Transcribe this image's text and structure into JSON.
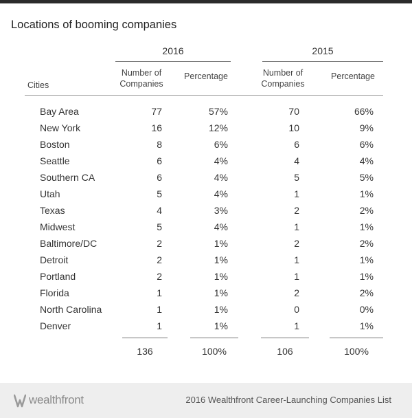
{
  "title": "Locations of booming companies",
  "years": [
    "2016",
    "2015"
  ],
  "col_headers": {
    "cities": "Cities",
    "number_line1": "Number of",
    "number_line2": "Companies",
    "percentage": "Percentage"
  },
  "rows": [
    {
      "city": "Bay Area",
      "n2016": "77",
      "p2016": "57%",
      "n2015": "70",
      "p2015": "66%"
    },
    {
      "city": "New York",
      "n2016": "16",
      "p2016": "12%",
      "n2015": "10",
      "p2015": "9%"
    },
    {
      "city": "Boston",
      "n2016": "8",
      "p2016": "6%",
      "n2015": "6",
      "p2015": "6%"
    },
    {
      "city": "Seattle",
      "n2016": "6",
      "p2016": "4%",
      "n2015": "4",
      "p2015": "4%"
    },
    {
      "city": "Southern CA",
      "n2016": "6",
      "p2016": "4%",
      "n2015": "5",
      "p2015": "5%"
    },
    {
      "city": "Utah",
      "n2016": "5",
      "p2016": "4%",
      "n2015": "1",
      "p2015": "1%"
    },
    {
      "city": "Texas",
      "n2016": "4",
      "p2016": "3%",
      "n2015": "2",
      "p2015": "2%"
    },
    {
      "city": "Midwest",
      "n2016": "5",
      "p2016": "4%",
      "n2015": "1",
      "p2015": "1%"
    },
    {
      "city": "Baltimore/DC",
      "n2016": "2",
      "p2016": "1%",
      "n2015": "2",
      "p2015": "2%"
    },
    {
      "city": "Detroit",
      "n2016": "2",
      "p2016": "1%",
      "n2015": "1",
      "p2015": "1%"
    },
    {
      "city": "Portland",
      "n2016": "2",
      "p2016": "1%",
      "n2015": "1",
      "p2015": "1%"
    },
    {
      "city": "Florida",
      "n2016": "1",
      "p2016": "1%",
      "n2015": "2",
      "p2015": "2%"
    },
    {
      "city": "North Carolina",
      "n2016": "1",
      "p2016": "1%",
      "n2015": "0",
      "p2015": "0%"
    },
    {
      "city": "Denver",
      "n2016": "1",
      "p2016": "1%",
      "n2015": "1",
      "p2015": "1%"
    }
  ],
  "totals": {
    "n2016": "136",
    "p2016": "100%",
    "n2015": "106",
    "p2015": "100%"
  },
  "footer": {
    "logo_text": "wealthfront",
    "source": "2016 Wealthfront Career-Launching Companies List"
  },
  "chart_data": {
    "type": "table",
    "title": "Locations of booming companies",
    "columns": [
      "Cities",
      "2016 Number of Companies",
      "2016 Percentage",
      "2015 Number of Companies",
      "2015 Percentage"
    ],
    "rows": [
      [
        "Bay Area",
        77,
        "57%",
        70,
        "66%"
      ],
      [
        "New York",
        16,
        "12%",
        10,
        "9%"
      ],
      [
        "Boston",
        8,
        "6%",
        6,
        "6%"
      ],
      [
        "Seattle",
        6,
        "4%",
        4,
        "4%"
      ],
      [
        "Southern CA",
        6,
        "4%",
        5,
        "5%"
      ],
      [
        "Utah",
        5,
        "4%",
        1,
        "1%"
      ],
      [
        "Texas",
        4,
        "3%",
        2,
        "2%"
      ],
      [
        "Midwest",
        5,
        "4%",
        1,
        "1%"
      ],
      [
        "Baltimore/DC",
        2,
        "1%",
        2,
        "2%"
      ],
      [
        "Detroit",
        2,
        "1%",
        1,
        "1%"
      ],
      [
        "Portland",
        2,
        "1%",
        1,
        "1%"
      ],
      [
        "Florida",
        1,
        "1%",
        2,
        "2%"
      ],
      [
        "North Carolina",
        1,
        "1%",
        0,
        "0%"
      ],
      [
        "Denver",
        1,
        "1%",
        1,
        "1%"
      ]
    ],
    "totals": [
      136,
      "100%",
      106,
      "100%"
    ]
  }
}
